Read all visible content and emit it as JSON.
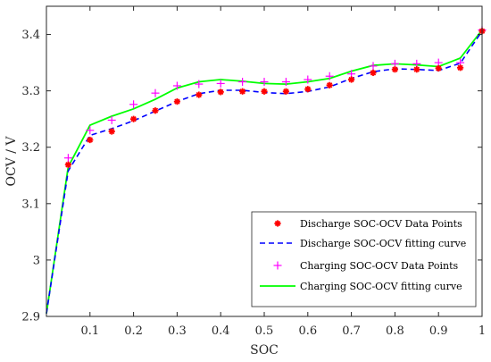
{
  "chart_data": {
    "type": "line",
    "xlabel": "SOC",
    "ylabel": "OCV / V",
    "xlim": [
      0,
      1
    ],
    "ylim": [
      2.9,
      3.45
    ],
    "grid": false,
    "legend_position": "bottom-right",
    "x_ticks": [
      {
        "v": 0.1,
        "label": "0.1"
      },
      {
        "v": 0.2,
        "label": "0.2"
      },
      {
        "v": 0.3,
        "label": "0.3"
      },
      {
        "v": 0.4,
        "label": "0.4"
      },
      {
        "v": 0.5,
        "label": "0.5"
      },
      {
        "v": 0.6,
        "label": "0.6"
      },
      {
        "v": 0.7,
        "label": "0.7"
      },
      {
        "v": 0.8,
        "label": "0.8"
      },
      {
        "v": 0.9,
        "label": "0.9"
      },
      {
        "v": 1.0,
        "label": "1"
      }
    ],
    "y_ticks": [
      {
        "v": 2.9,
        "label": "2.9"
      },
      {
        "v": 3.0,
        "label": "3"
      },
      {
        "v": 3.1,
        "label": "3.1"
      },
      {
        "v": 3.2,
        "label": "3.2"
      },
      {
        "v": 3.3,
        "label": "3.3"
      },
      {
        "v": 3.4,
        "label": "3.4"
      }
    ],
    "series": [
      {
        "name": "Discharge SOC-OCV Data Points",
        "style": "marker-asterisk",
        "color": "#ff0000",
        "x": [
          0.05,
          0.1,
          0.15,
          0.2,
          0.25,
          0.3,
          0.35,
          0.4,
          0.45,
          0.5,
          0.55,
          0.6,
          0.65,
          0.7,
          0.75,
          0.8,
          0.85,
          0.9,
          0.95,
          1.0
        ],
        "y": [
          3.169,
          3.213,
          3.228,
          3.25,
          3.265,
          3.281,
          3.293,
          3.298,
          3.299,
          3.299,
          3.299,
          3.303,
          3.31,
          3.32,
          3.332,
          3.338,
          3.338,
          3.34,
          3.341,
          3.406
        ]
      },
      {
        "name": "Discharge SOC-OCV fitting curve",
        "style": "dashed-line",
        "color": "#0000ff",
        "x": [
          0.0,
          0.05,
          0.1,
          0.15,
          0.2,
          0.25,
          0.3,
          0.35,
          0.4,
          0.45,
          0.5,
          0.55,
          0.6,
          0.65,
          0.7,
          0.75,
          0.8,
          0.85,
          0.9,
          0.95,
          1.0
        ],
        "y": [
          2.905,
          3.158,
          3.221,
          3.233,
          3.247,
          3.264,
          3.281,
          3.295,
          3.301,
          3.301,
          3.297,
          3.295,
          3.299,
          3.307,
          3.322,
          3.334,
          3.339,
          3.338,
          3.336,
          3.349,
          3.406
        ]
      },
      {
        "name": "Charging SOC-OCV Data Points",
        "style": "marker-plus",
        "color": "#ff00ff",
        "x": [
          0.05,
          0.1,
          0.15,
          0.2,
          0.25,
          0.3,
          0.35,
          0.4,
          0.45,
          0.5,
          0.55,
          0.6,
          0.65,
          0.7,
          0.75,
          0.8,
          0.85,
          0.9,
          0.95,
          1.0
        ],
        "y": [
          3.181,
          3.23,
          3.248,
          3.276,
          3.296,
          3.309,
          3.312,
          3.313,
          3.316,
          3.316,
          3.316,
          3.32,
          3.326,
          3.33,
          3.344,
          3.348,
          3.348,
          3.35,
          3.35,
          3.408
        ]
      },
      {
        "name": "Charging SOC-OCV fitting curve",
        "style": "solid-line",
        "color": "#00ff00",
        "x": [
          0.0,
          0.05,
          0.1,
          0.15,
          0.2,
          0.25,
          0.3,
          0.35,
          0.4,
          0.45,
          0.5,
          0.55,
          0.6,
          0.65,
          0.7,
          0.75,
          0.8,
          0.85,
          0.9,
          0.95,
          1.0
        ],
        "y": [
          2.905,
          3.165,
          3.239,
          3.255,
          3.268,
          3.285,
          3.305,
          3.316,
          3.32,
          3.317,
          3.313,
          3.312,
          3.316,
          3.322,
          3.335,
          3.345,
          3.348,
          3.346,
          3.343,
          3.358,
          3.408
        ]
      }
    ]
  }
}
